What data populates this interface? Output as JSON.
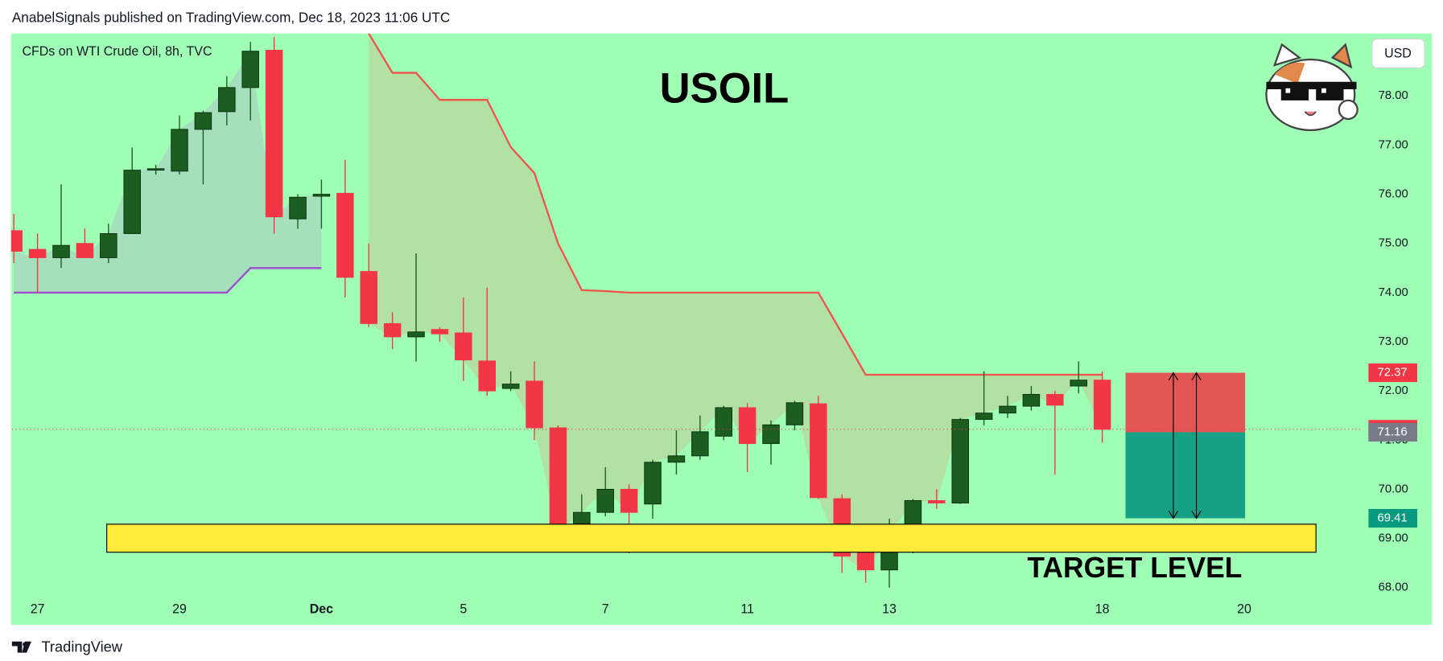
{
  "chart_data": {
    "type": "candlestick",
    "header": "AnabelSignals published on TradingView.com, Dec 18, 2023 11:06 UTC",
    "symbol": "CFDs on WTI Crude Oil, 8h, TVC",
    "title": "USOIL",
    "annotation": "TARGET LEVEL",
    "currency": "USD",
    "footer": "TradingView",
    "x": [
      0,
      1,
      2,
      3,
      4,
      5,
      6,
      7,
      8,
      9,
      10,
      11,
      12,
      13,
      14,
      15,
      16,
      17,
      18,
      19,
      20,
      21,
      22,
      23,
      24,
      25,
      26,
      27,
      28,
      29,
      30,
      31,
      32,
      33,
      34,
      35,
      36,
      37,
      38,
      39,
      40,
      41,
      42,
      43,
      44,
      45,
      46
    ],
    "open": [
      75.26,
      74.88,
      74.71,
      75.0,
      74.71,
      75.2,
      76.49,
      76.47,
      77.32,
      77.68,
      78.17,
      78.93,
      75.5,
      75.96,
      76.02,
      74.43,
      73.37,
      73.1,
      73.25,
      73.18,
      72.61,
      72.05,
      72.2,
      71.25,
      69.3,
      69.53,
      70.0,
      69.7,
      70.55,
      70.68,
      71.08,
      71.66,
      70.93,
      71.31,
      71.74,
      69.81,
      68.78,
      68.36,
      69.02,
      69.77,
      69.72,
      71.42,
      71.55,
      71.69,
      71.93,
      72.1,
      72.22
    ],
    "high": [
      75.6,
      75.2,
      76.2,
      75.3,
      75.4,
      76.95,
      76.6,
      77.6,
      77.7,
      78.4,
      79.1,
      79.2,
      76.0,
      76.3,
      76.7,
      75.0,
      73.6,
      74.8,
      73.3,
      73.9,
      74.1,
      72.4,
      72.6,
      71.3,
      69.9,
      70.45,
      70.1,
      70.6,
      71.2,
      71.5,
      71.7,
      71.75,
      71.4,
      71.8,
      71.9,
      69.9,
      68.78,
      69.4,
      69.8,
      70.0,
      71.45,
      72.4,
      71.9,
      72.1,
      72.0,
      72.6,
      72.4
    ],
    "low": [
      74.6,
      74.0,
      74.5,
      74.7,
      74.6,
      75.2,
      76.4,
      76.4,
      76.2,
      77.4,
      77.5,
      75.2,
      75.3,
      75.3,
      73.9,
      73.3,
      72.85,
      72.6,
      73.0,
      72.2,
      71.9,
      72.0,
      71.0,
      69.0,
      69.2,
      69.45,
      68.7,
      69.4,
      70.3,
      70.6,
      71.0,
      70.35,
      70.5,
      71.2,
      69.8,
      68.3,
      68.1,
      68.0,
      68.7,
      69.6,
      69.7,
      71.3,
      71.45,
      71.6,
      70.3,
      71.95,
      70.95
    ],
    "close": [
      74.84,
      74.71,
      74.96,
      74.71,
      75.2,
      76.49,
      76.52,
      77.32,
      77.66,
      78.17,
      78.91,
      75.54,
      75.94,
      76.0,
      74.31,
      73.37,
      73.1,
      73.2,
      73.16,
      72.63,
      72.0,
      72.14,
      71.25,
      69.13,
      69.53,
      70.0,
      69.53,
      70.55,
      70.68,
      71.17,
      71.66,
      70.93,
      71.31,
      71.76,
      69.83,
      68.64,
      68.36,
      69.06,
      69.77,
      69.72,
      71.42,
      71.55,
      71.69,
      71.93,
      71.71,
      72.22,
      71.22
    ],
    "up_color": "#1b5e20",
    "down_color": "#f23645",
    "overlays": [
      {
        "color": "#f0524f",
        "fill": "#b3dfa1",
        "values": [
          null,
          null,
          null,
          null,
          null,
          null,
          null,
          null,
          null,
          null,
          null,
          null,
          null,
          null,
          null,
          79.27,
          78.47,
          78.47,
          77.92,
          77.92,
          77.92,
          76.96,
          76.43,
          75.0,
          74.05,
          74.03,
          74.0,
          74.0,
          74.0,
          74.0,
          74.0,
          74.0,
          74.0,
          74.0,
          74.0,
          73.17,
          72.33,
          72.33,
          72.33,
          72.33,
          72.33,
          72.33,
          72.33,
          72.33,
          72.33,
          72.33,
          72.33
        ]
      },
      {
        "color": "#9c4fc9",
        "fill": "#a5dcbb",
        "values": [
          74.0,
          74.0,
          74.0,
          74.0,
          74.0,
          74.0,
          74.0,
          74.0,
          74.0,
          74.0,
          74.5,
          74.5,
          74.5,
          74.5,
          null,
          null,
          null,
          null,
          null,
          null,
          null,
          null,
          null,
          null,
          null,
          null,
          null,
          null,
          null,
          null,
          null,
          null,
          null,
          null,
          null,
          null,
          null,
          null,
          null,
          null,
          null,
          null,
          null,
          null,
          null,
          null,
          null
        ]
      }
    ],
    "zone": {
      "low": 68.72,
      "high": 69.29,
      "color": "#ffeb3b"
    },
    "position": {
      "stop": 72.37,
      "entry": 71.16,
      "target": 69.41,
      "stop_color": "#e35656",
      "target_color": "#16a085"
    },
    "last_price": 71.22,
    "label_colors": {
      "stop": "#f23645",
      "last": "#f23645",
      "entry": "#787b86",
      "target": "#089981"
    },
    "xlim": [
      -0.08,
      56.9
    ],
    "xticks": [
      {
        "value": 1,
        "label": "27"
      },
      {
        "value": 7,
        "label": "29"
      },
      {
        "value": 13,
        "label": "Dec"
      },
      {
        "value": 19,
        "label": "5"
      },
      {
        "value": 25,
        "label": "7"
      },
      {
        "value": 31,
        "label": "11"
      },
      {
        "value": 37,
        "label": "13"
      },
      {
        "value": 46,
        "label": "18"
      },
      {
        "value": 52,
        "label": "20"
      }
    ],
    "ylim": [
      67.85,
      79.27
    ],
    "yticks": [
      {
        "value": 68,
        "label": "68.00"
      },
      {
        "value": 69,
        "label": "69.00"
      },
      {
        "value": 70,
        "label": "70.00"
      },
      {
        "value": 71,
        "label": "71.00"
      },
      {
        "value": 72,
        "label": "72.00"
      },
      {
        "value": 73,
        "label": "73.00"
      },
      {
        "value": 74,
        "label": "74.00"
      },
      {
        "value": 75,
        "label": "75.00"
      },
      {
        "value": 76,
        "label": "76.00"
      },
      {
        "value": 77,
        "label": "77.00"
      },
      {
        "value": 78,
        "label": "78.00"
      }
    ],
    "grid": false
  }
}
